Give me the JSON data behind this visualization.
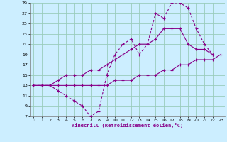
{
  "xlabel": "Windchill (Refroidissement éolien,°C)",
  "bg_color": "#cceeff",
  "grid_color": "#99ccbb",
  "line_color": "#880088",
  "xlim": [
    -0.5,
    23.5
  ],
  "ylim": [
    7,
    29
  ],
  "xticks": [
    0,
    1,
    2,
    3,
    4,
    5,
    6,
    7,
    8,
    9,
    10,
    11,
    12,
    13,
    14,
    15,
    16,
    17,
    18,
    19,
    20,
    21,
    22,
    23
  ],
  "yticks": [
    7,
    9,
    11,
    13,
    15,
    17,
    19,
    21,
    23,
    25,
    27,
    29
  ],
  "line1_x": [
    0,
    1,
    2,
    3,
    4,
    5,
    6,
    7,
    8,
    9,
    10,
    11,
    12,
    13,
    14,
    15,
    16,
    17,
    18,
    19,
    20,
    21,
    22,
    23
  ],
  "line1_y": [
    13,
    13,
    13,
    13,
    13,
    13,
    13,
    13,
    13,
    13,
    14,
    14,
    14,
    15,
    15,
    15,
    16,
    16,
    17,
    17,
    18,
    18,
    18,
    19
  ],
  "line2_x": [
    0,
    1,
    2,
    3,
    4,
    5,
    6,
    7,
    8,
    9,
    10,
    11,
    12,
    13,
    14,
    15,
    16,
    17,
    18,
    19,
    20,
    21,
    22
  ],
  "line2_y": [
    13,
    13,
    13,
    12,
    11,
    10,
    9,
    7,
    8,
    15,
    19,
    21,
    22,
    19,
    21,
    27,
    26,
    29,
    29,
    28,
    24,
    21,
    19
  ],
  "line3_x": [
    0,
    1,
    2,
    3,
    4,
    5,
    6,
    7,
    8,
    9,
    10,
    11,
    12,
    13,
    14,
    15,
    16,
    17,
    18,
    19,
    20,
    21,
    22
  ],
  "line3_y": [
    13,
    13,
    13,
    14,
    15,
    15,
    15,
    16,
    16,
    17,
    18,
    19,
    20,
    21,
    21,
    22,
    24,
    24,
    24,
    21,
    20,
    20,
    19
  ]
}
